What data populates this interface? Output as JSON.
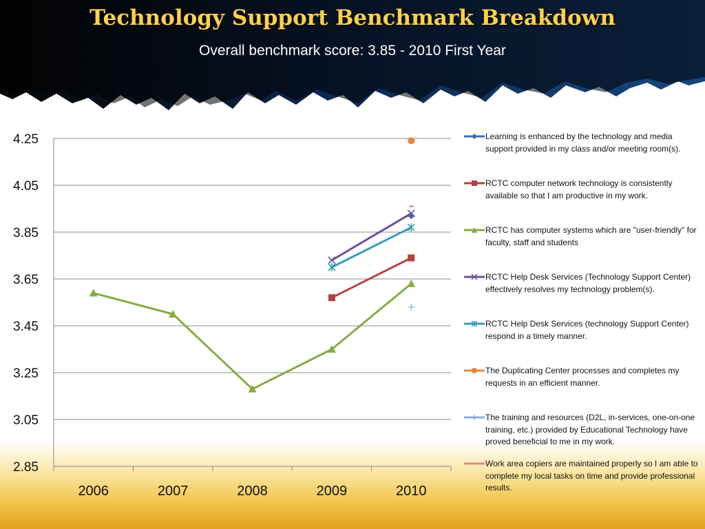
{
  "header": {
    "title": "Technology Support Benchmark Breakdown",
    "subtitle": "Overall benchmark score: 3.85  -  2010 First Year"
  },
  "chart_data": {
    "type": "line",
    "title": "",
    "xlabel": "",
    "ylabel": "",
    "categories": [
      "2006",
      "2007",
      "2008",
      "2009",
      "2010"
    ],
    "yticks": [
      "4.25",
      "4.05",
      "3.85",
      "3.65",
      "3.45",
      "3.25",
      "3.05",
      "2.85"
    ],
    "ylim": [
      2.85,
      4.25
    ],
    "grid": "horizontal",
    "legend_position": "right",
    "series": [
      {
        "name": "Learning is enhanced by the technology and media support provided in my class and/or meeting room(s).",
        "color": "#3f6bb0",
        "marker": "diamond",
        "values": [
          null,
          null,
          null,
          null,
          3.92
        ]
      },
      {
        "name": "RCTC computer network technology is consistently available so that I am productive in my work.",
        "color": "#b5413e",
        "marker": "square",
        "values": [
          null,
          null,
          null,
          3.57,
          3.74
        ]
      },
      {
        "name": "RCTC has computer systems which are \"user-friendly\" for faculty, staff and students",
        "color": "#86ab45",
        "marker": "triangle",
        "values": [
          3.59,
          3.5,
          3.18,
          3.35,
          3.63
        ]
      },
      {
        "name": "RCTC Help Desk Services (Technology Support Center) effectively resolves my technology problem(s).",
        "color": "#6e4f9c",
        "marker": "x",
        "values": [
          null,
          null,
          null,
          3.73,
          3.93
        ]
      },
      {
        "name": "RCTC Help Desk Services (technology Support Center) respond in a timely manner.",
        "color": "#3c9bb3",
        "marker": "star",
        "values": [
          null,
          null,
          null,
          3.7,
          3.87
        ]
      },
      {
        "name": "The Duplicating Center processes and completes my requests in an efficient manner.",
        "color": "#e3893b",
        "marker": "circle",
        "values": [
          null,
          null,
          null,
          null,
          4.24
        ]
      },
      {
        "name": "The training and resources (D2L, in-services, one-on-one training, etc.) provided by Educational Technology have proved beneficial  to me in my work.",
        "color": "#8fadd6",
        "marker": "plus",
        "values": [
          null,
          null,
          null,
          null,
          3.53
        ]
      },
      {
        "name": "Work area copiers are maintained properly so I am able to complete my local tasks on time and provide professional results.",
        "color": "#e08a88",
        "marker": "dash",
        "values": [
          null,
          null,
          null,
          null,
          3.96
        ]
      }
    ]
  }
}
